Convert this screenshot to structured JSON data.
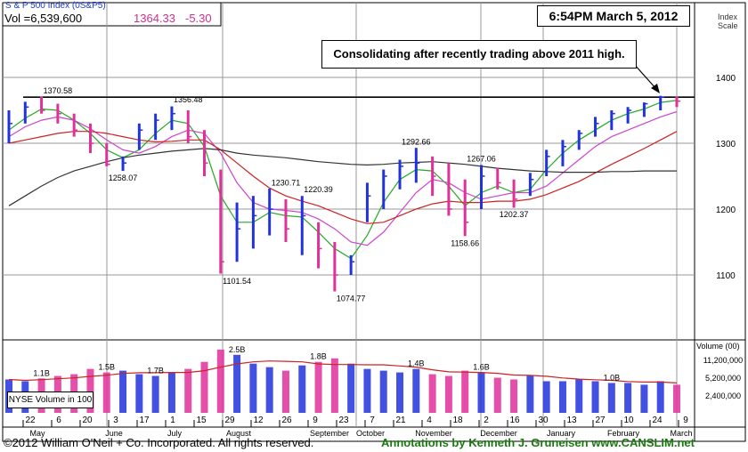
{
  "header": {
    "index_name": "S & P 500 Index  (0S&P5)",
    "volume": "Vol =6,539,600",
    "price": "1364.33",
    "change": "-5.30"
  },
  "timestamp": "6:54PM March 5, 2012",
  "annotation": "Consolidating after recently trading above 2011 high.",
  "scale_label": [
    "Index",
    "Scale"
  ],
  "volume_label": "Volume (00)",
  "nyse_label": "NYSE Volume in 100",
  "footer": {
    "copyright": "©2012 William O'Neil + Co. Incorporated. All rights reserved.",
    "credit": "Annotations by Kenneth J. Gruneisen  www.CANSLIM.net"
  },
  "colors": {
    "up_bar": "#2233dd",
    "down_bar": "#e0309a",
    "ma_green": "#22aa22",
    "ma_red": "#cc2222",
    "ma_magenta": "#cc44cc",
    "ma_black": "#333333",
    "grid": "#999999"
  },
  "chart_data": {
    "type": "bar",
    "price_ticks": [
      1100,
      1200,
      1300,
      1400
    ],
    "ylim": [
      1000,
      1500
    ],
    "volume_ticks": [
      "11,200,000",
      "5,200,000",
      "2,400,000"
    ],
    "resistance_level": 1370,
    "price_annotations": [
      {
        "label": "1370.58",
        "value": 1370.58,
        "week": 3
      },
      {
        "label": "1356.48",
        "value": 1356.48,
        "week": 11
      },
      {
        "label": "1258.07",
        "value": 1258.07,
        "week": 7
      },
      {
        "label": "1101.54",
        "value": 1101.54,
        "week": 14
      },
      {
        "label": "1230.71",
        "value": 1230.71,
        "week": 17
      },
      {
        "label": "1220.39",
        "value": 1220.39,
        "week": 19
      },
      {
        "label": "1074.77",
        "value": 1074.77,
        "week": 21
      },
      {
        "label": "1292.66",
        "value": 1292.66,
        "week": 25
      },
      {
        "label": "1158.66",
        "value": 1158.66,
        "week": 28
      },
      {
        "label": "1267.06",
        "value": 1267.06,
        "week": 29
      },
      {
        "label": "1202.37",
        "value": 1202.37,
        "week": 31
      }
    ],
    "volume_annotations": [
      {
        "label": "1.1B",
        "week": 2
      },
      {
        "label": "1.5B",
        "week": 6
      },
      {
        "label": "1.7B",
        "week": 9
      },
      {
        "label": "2.5B",
        "week": 14
      },
      {
        "label": "1.8B",
        "week": 19
      },
      {
        "label": "1.4B",
        "week": 25
      },
      {
        "label": "1.6B",
        "week": 29
      },
      {
        "label": "1.0B",
        "week": 37
      }
    ],
    "week_labels": [
      "22",
      "6",
      "20",
      "3",
      "17",
      "1",
      "15",
      "29",
      "12",
      "26",
      "9",
      "23",
      "7",
      "21",
      "4",
      "18",
      "2",
      "16",
      "30",
      "13",
      "27",
      "10",
      "24",
      "9"
    ],
    "month_labels": [
      "May",
      "June",
      "July",
      "August",
      "September",
      "October",
      "November",
      "December",
      "January",
      "February",
      "March"
    ],
    "weeks": {
      "high": [
        1350,
        1363,
        1371,
        1360,
        1345,
        1330,
        1300,
        1280,
        1330,
        1345,
        1356,
        1350,
        1320,
        1260,
        1210,
        1220,
        1231,
        1215,
        1220,
        1180,
        1150,
        1130,
        1240,
        1260,
        1275,
        1293,
        1280,
        1270,
        1245,
        1267,
        1263,
        1245,
        1255,
        1290,
        1305,
        1320,
        1340,
        1350,
        1355,
        1362,
        1372,
        1371
      ],
      "low": [
        1300,
        1330,
        1345,
        1330,
        1310,
        1285,
        1265,
        1258,
        1290,
        1305,
        1320,
        1300,
        1250,
        1102,
        1120,
        1140,
        1160,
        1150,
        1130,
        1110,
        1075,
        1100,
        1180,
        1200,
        1230,
        1240,
        1220,
        1190,
        1159,
        1200,
        1230,
        1202,
        1220,
        1250,
        1265,
        1290,
        1310,
        1320,
        1330,
        1340,
        1350,
        1355
      ],
      "close": [
        1330,
        1355,
        1350,
        1345,
        1320,
        1300,
        1268,
        1270,
        1320,
        1335,
        1345,
        1310,
        1270,
        1120,
        1170,
        1190,
        1200,
        1170,
        1190,
        1140,
        1100,
        1120,
        1220,
        1250,
        1265,
        1270,
        1250,
        1200,
        1180,
        1250,
        1240,
        1215,
        1245,
        1280,
        1295,
        1315,
        1330,
        1345,
        1350,
        1360,
        1370,
        1364
      ],
      "volume": [
        9.5,
        9.0,
        9.8,
        10.5,
        11.0,
        12.5,
        11.5,
        12.0,
        11.0,
        10.5,
        11.5,
        12.5,
        14.5,
        18.0,
        16.5,
        14.0,
        13.0,
        12.0,
        13.5,
        14.5,
        15.5,
        14.0,
        12.5,
        12.0,
        11.5,
        12.5,
        11.0,
        10.5,
        12.0,
        11.5,
        10.0,
        9.5,
        10.5,
        9.0,
        9.0,
        9.5,
        9.0,
        8.5,
        8.5,
        8.0,
        9.0,
        8.0
      ]
    },
    "moving_averages": [
      {
        "color": "green",
        "values": [
          1320,
          1338,
          1352,
          1350,
          1335,
          1315,
          1290,
          1278,
          1290,
          1315,
          1335,
          1330,
          1295,
          1220,
          1180,
          1180,
          1195,
          1190,
          1188,
          1165,
          1140,
          1125,
          1160,
          1210,
          1245,
          1260,
          1258,
          1235,
          1205,
          1225,
          1235,
          1225,
          1230,
          1260,
          1285,
          1305,
          1320,
          1335,
          1345,
          1352,
          1362,
          1365
        ]
      },
      {
        "color": "magenta",
        "values": [
          1310,
          1325,
          1335,
          1340,
          1335,
          1322,
          1305,
          1290,
          1285,
          1295,
          1310,
          1320,
          1315,
          1285,
          1240,
          1210,
          1200,
          1198,
          1195,
          1185,
          1170,
          1150,
          1145,
          1165,
          1195,
          1225,
          1245,
          1240,
          1225,
          1215,
          1220,
          1225,
          1225,
          1235,
          1255,
          1275,
          1295,
          1310,
          1320,
          1330,
          1340,
          1348
        ]
      },
      {
        "color": "red",
        "values": [
          1300,
          1305,
          1310,
          1315,
          1318,
          1318,
          1315,
          1310,
          1305,
          1302,
          1303,
          1305,
          1305,
          1290,
          1270,
          1250,
          1232,
          1220,
          1212,
          1205,
          1195,
          1185,
          1178,
          1180,
          1190,
          1200,
          1208,
          1212,
          1210,
          1210,
          1212,
          1212,
          1215,
          1222,
          1232,
          1242,
          1255,
          1268,
          1280,
          1292,
          1305,
          1318
        ]
      },
      {
        "color": "black",
        "values": [
          1205,
          1220,
          1235,
          1248,
          1258,
          1265,
          1272,
          1278,
          1282,
          1285,
          1288,
          1290,
          1292,
          1290,
          1285,
          1282,
          1280,
          1278,
          1275,
          1272,
          1270,
          1268,
          1267,
          1268,
          1270,
          1271,
          1272,
          1270,
          1268,
          1265,
          1262,
          1260,
          1258,
          1257,
          1256,
          1256,
          1256,
          1257,
          1257,
          1258,
          1258,
          1258
        ]
      }
    ]
  }
}
